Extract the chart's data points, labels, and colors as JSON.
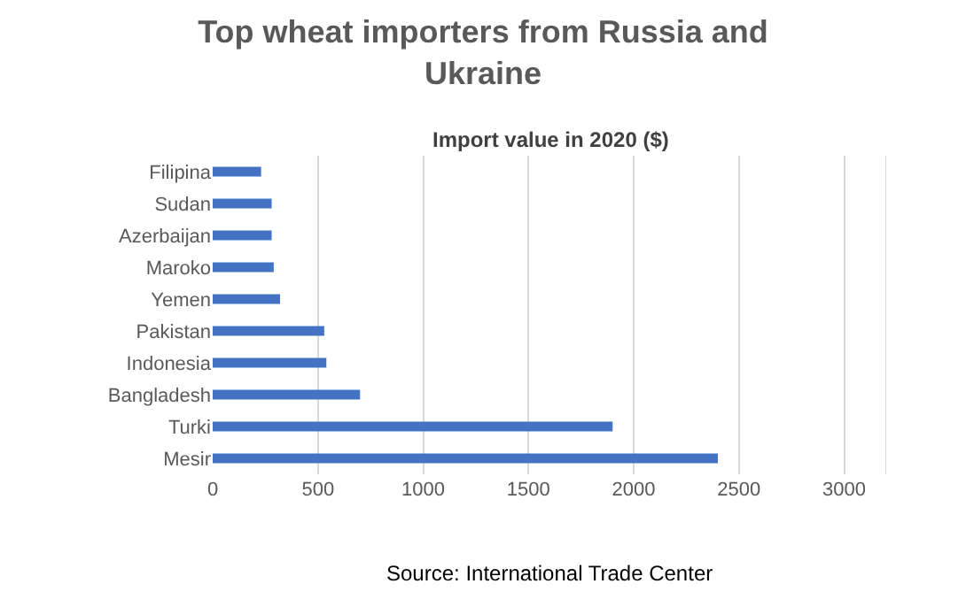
{
  "chart_data": {
    "type": "bar",
    "orientation": "horizontal",
    "title": "Top wheat importers from Russia and Ukraine",
    "subtitle": "Import value in 2020 ($)",
    "categories": [
      "Filipina",
      "Sudan",
      "Azerbaijan",
      "Maroko",
      "Yemen",
      "Pakistan",
      "Indonesia",
      "Bangladesh",
      "Turki",
      "Mesir"
    ],
    "values": [
      230,
      280,
      280,
      290,
      320,
      530,
      540,
      700,
      1900,
      2400
    ],
    "color": "#4472c4",
    "xlim": [
      0,
      3200
    ],
    "xticks": [
      0,
      500,
      1000,
      1500,
      2000,
      2500,
      3000
    ],
    "grid": "x",
    "annotations": [
      "Source: International Trade Center"
    ]
  }
}
